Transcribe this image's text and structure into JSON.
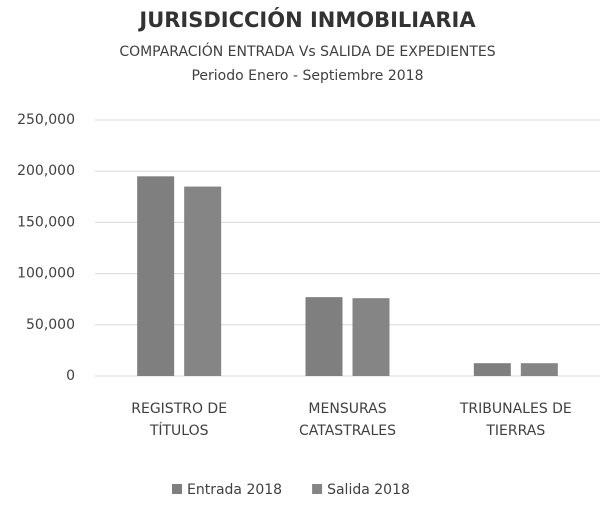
{
  "chart_data": {
    "type": "bar",
    "title": "JURISDICCIÓN INMOBILIARIA",
    "subtitle": [
      "COMPARACIÓN ENTRADA Vs SALIDA DE EXPEDIENTES",
      "Periodo Enero - Septiembre 2018"
    ],
    "categories": [
      "REGISTRO DE TÍTULOS",
      "MENSURAS CATASTRALES",
      "TRIBUNALES DE TIERRAS"
    ],
    "series": [
      {
        "name": "Entrada 2018",
        "color": "#7f7f7f",
        "values": [
          195000,
          77000,
          12500
        ]
      },
      {
        "name": "Salida 2018",
        "color": "#858585",
        "values": [
          185000,
          76000,
          12500
        ]
      }
    ],
    "ylim": [
      0,
      250000
    ],
    "yticks": [
      0,
      {
        "value": 50000,
        "label": "50,000"
      },
      {
        "value": 100000,
        "label": "100,000"
      },
      {
        "value": 150000,
        "label": "150,000"
      },
      {
        "value": 200000,
        "label": "200,000"
      },
      {
        "value": 250000,
        "label": "250,000"
      }
    ],
    "grid": true,
    "legend": "bottom"
  }
}
